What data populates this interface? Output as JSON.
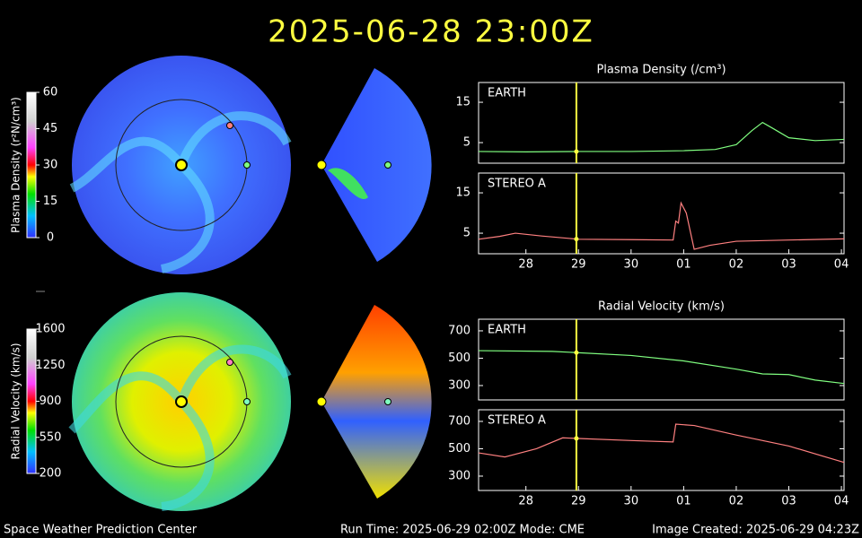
{
  "header": {
    "title": "2025-06-28 23:00Z"
  },
  "footer": {
    "left": "Space Weather Prediction Center",
    "center": "Run Time: 2025-06-29 02:00Z  Mode: CME",
    "right": "Image Created: 2025-06-29 04:23Z"
  },
  "colorbars": [
    {
      "label": "Plasma Density (r²N/cm³)",
      "lim": [
        0,
        60
      ],
      "ticks": [
        60,
        45,
        30,
        15,
        0
      ]
    },
    {
      "label": "Radial Velocity (km/s)",
      "lim": [
        200,
        1600
      ],
      "ticks": [
        1600,
        1250,
        900,
        550,
        200
      ]
    }
  ],
  "current_x": 28.96,
  "chart_data": [
    {
      "type": "line",
      "title": "Plasma Density (/cm³)",
      "xlim": [
        27.1,
        34.05
      ],
      "ylim": [
        -0.1,
        19.9
      ],
      "yticks": [
        5,
        15
      ],
      "series": [
        {
          "name": "EARTH",
          "color": "#80ff80",
          "x": [
            27.1,
            28,
            29,
            30,
            31,
            31.6,
            32,
            32.3,
            32.5,
            32.7,
            33,
            33.5,
            34.05
          ],
          "values": [
            2.8,
            2.7,
            2.8,
            2.8,
            3,
            3.3,
            4.5,
            8,
            10,
            8.5,
            6.2,
            5.5,
            5.8
          ]
        }
      ]
    },
    {
      "type": "line",
      "xlim": [
        27.1,
        34.05
      ],
      "ylim": [
        -0.1,
        19.9
      ],
      "yticks": [
        5,
        15
      ],
      "xticks": [
        {
          "value": 28,
          "label": "28"
        },
        {
          "value": 29,
          "label": "29"
        },
        {
          "value": 30,
          "label": "30"
        },
        {
          "value": 31,
          "label": "01"
        },
        {
          "value": 32,
          "label": "02"
        },
        {
          "value": 33,
          "label": "03"
        },
        {
          "value": 34,
          "label": "04"
        }
      ],
      "series": [
        {
          "name": "STEREO A",
          "color": "#ff8080",
          "x": [
            27.1,
            27.5,
            27.8,
            28.3,
            29,
            30,
            30.8,
            30.85,
            30.9,
            30.95,
            31.05,
            31.2,
            31.5,
            32,
            33,
            34.05
          ],
          "values": [
            3.5,
            4.2,
            5,
            4.3,
            3.5,
            3.4,
            3.3,
            8,
            7.5,
            12.5,
            10,
            1,
            2,
            3,
            3.3,
            3.6
          ]
        }
      ]
    },
    {
      "type": "line",
      "title": "Radial Velocity (km/s)",
      "xlim": [
        27.1,
        34.05
      ],
      "ylim": [
        195,
        785
      ],
      "yticks": [
        300,
        500,
        700
      ],
      "series": [
        {
          "name": "EARTH",
          "color": "#80ff80",
          "x": [
            27.1,
            28.5,
            29,
            30,
            31,
            32,
            32.5,
            33,
            33.5,
            34.05
          ],
          "values": [
            555,
            550,
            540,
            520,
            480,
            420,
            385,
            380,
            340,
            315
          ]
        }
      ]
    },
    {
      "type": "line",
      "xlim": [
        27.1,
        34.05
      ],
      "ylim": [
        195,
        785
      ],
      "yticks": [
        300,
        500,
        700
      ],
      "xticks": [
        {
          "value": 28,
          "label": "28"
        },
        {
          "value": 29,
          "label": "29"
        },
        {
          "value": 30,
          "label": "30"
        },
        {
          "value": 31,
          "label": "01"
        },
        {
          "value": 32,
          "label": "02"
        },
        {
          "value": 33,
          "label": "03"
        },
        {
          "value": 34,
          "label": "04"
        }
      ],
      "series": [
        {
          "name": "STEREO A",
          "color": "#ff8080",
          "x": [
            27.1,
            27.6,
            28.2,
            28.7,
            29,
            30,
            30.8,
            30.85,
            31.2,
            32,
            33,
            34.05
          ],
          "values": [
            470,
            440,
            500,
            580,
            575,
            560,
            550,
            680,
            670,
            600,
            520,
            400
          ]
        }
      ]
    }
  ]
}
